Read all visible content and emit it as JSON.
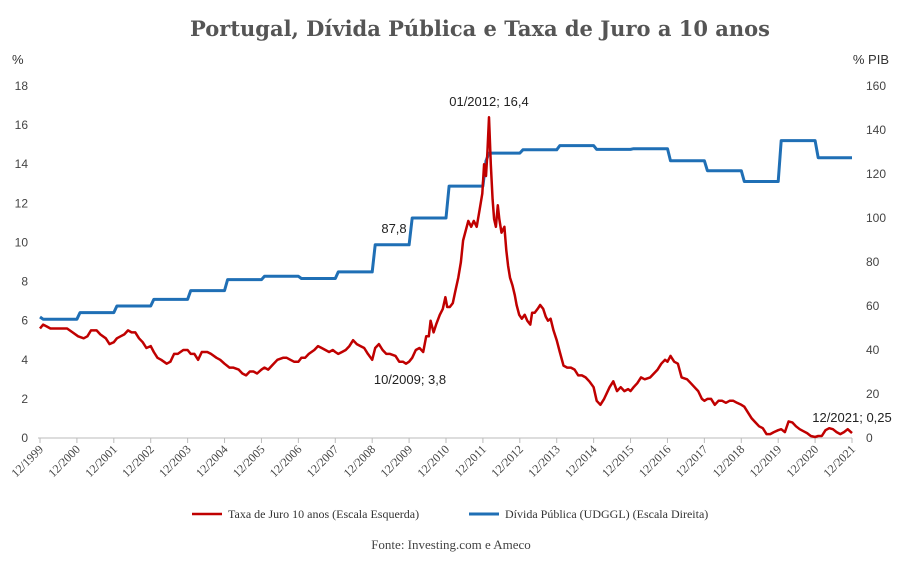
{
  "chart_data": {
    "type": "line",
    "title": "Portugal, Dívida Pública e Taxa de Juro a 10 anos",
    "left_axis_unit": "%",
    "right_axis_unit": "% PIB",
    "ylim_left": [
      0,
      18
    ],
    "ylim_right": [
      0,
      160
    ],
    "yticks_left": [
      "0",
      "2",
      "4",
      "6",
      "8",
      "10",
      "12",
      "14",
      "16",
      "18"
    ],
    "yticks_right": [
      "0",
      "20",
      "40",
      "60",
      "80",
      "100",
      "120",
      "140",
      "160"
    ],
    "xlim": [
      1999.917,
      2021.917
    ],
    "xticks": [
      "12/1999",
      "12/2000",
      "12/2001",
      "12/2002",
      "12/2003",
      "12/2004",
      "12/2005",
      "12/2006",
      "12/2007",
      "12/2008",
      "12/2009",
      "12/2010",
      "12/2011",
      "12/2012",
      "12/2013",
      "12/2014",
      "12/2015",
      "12/2016",
      "12/2017",
      "12/2018",
      "12/2019",
      "12/2020",
      "12/2021"
    ],
    "grid": false,
    "legend_position": "bottom",
    "source": "Fonte: Investing.com e Ameco",
    "series": [
      {
        "name": "Taxa de Juro 10 anos (Escala Esquerda)",
        "axis": "left",
        "color": "#C00000",
        "points": [
          [
            1999.917,
            5.6
          ],
          [
            2000.0,
            5.8
          ],
          [
            2000.1,
            5.7
          ],
          [
            2000.2,
            5.6
          ],
          [
            2000.35,
            5.6
          ],
          [
            2000.5,
            5.6
          ],
          [
            2000.65,
            5.6
          ],
          [
            2000.8,
            5.4
          ],
          [
            2000.95,
            5.2
          ],
          [
            2001.1,
            5.1
          ],
          [
            2001.2,
            5.2
          ],
          [
            2001.3,
            5.5
          ],
          [
            2001.45,
            5.5
          ],
          [
            2001.55,
            5.3
          ],
          [
            2001.7,
            5.1
          ],
          [
            2001.8,
            4.8
          ],
          [
            2001.917,
            4.9
          ],
          [
            2002.0,
            5.1
          ],
          [
            2002.1,
            5.2
          ],
          [
            2002.2,
            5.3
          ],
          [
            2002.3,
            5.5
          ],
          [
            2002.4,
            5.4
          ],
          [
            2002.5,
            5.4
          ],
          [
            2002.6,
            5.1
          ],
          [
            2002.7,
            4.9
          ],
          [
            2002.8,
            4.6
          ],
          [
            2002.917,
            4.7
          ],
          [
            2003.0,
            4.4
          ],
          [
            2003.1,
            4.1
          ],
          [
            2003.2,
            4.0
          ],
          [
            2003.35,
            3.8
          ],
          [
            2003.45,
            3.9
          ],
          [
            2003.55,
            4.3
          ],
          [
            2003.65,
            4.3
          ],
          [
            2003.8,
            4.5
          ],
          [
            2003.917,
            4.5
          ],
          [
            2004.0,
            4.3
          ],
          [
            2004.1,
            4.3
          ],
          [
            2004.2,
            4.0
          ],
          [
            2004.3,
            4.4
          ],
          [
            2004.45,
            4.4
          ],
          [
            2004.55,
            4.3
          ],
          [
            2004.7,
            4.1
          ],
          [
            2004.8,
            4.0
          ],
          [
            2004.917,
            3.8
          ],
          [
            2005.05,
            3.6
          ],
          [
            2005.15,
            3.6
          ],
          [
            2005.3,
            3.5
          ],
          [
            2005.4,
            3.3
          ],
          [
            2005.5,
            3.2
          ],
          [
            2005.6,
            3.4
          ],
          [
            2005.7,
            3.4
          ],
          [
            2005.8,
            3.3
          ],
          [
            2005.917,
            3.5
          ],
          [
            2006.0,
            3.6
          ],
          [
            2006.1,
            3.5
          ],
          [
            2006.2,
            3.7
          ],
          [
            2006.35,
            4.0
          ],
          [
            2006.5,
            4.1
          ],
          [
            2006.6,
            4.1
          ],
          [
            2006.7,
            4.0
          ],
          [
            2006.8,
            3.9
          ],
          [
            2006.917,
            3.9
          ],
          [
            2007.0,
            4.1
          ],
          [
            2007.1,
            4.1
          ],
          [
            2007.2,
            4.3
          ],
          [
            2007.35,
            4.5
          ],
          [
            2007.45,
            4.7
          ],
          [
            2007.55,
            4.6
          ],
          [
            2007.65,
            4.5
          ],
          [
            2007.75,
            4.4
          ],
          [
            2007.85,
            4.5
          ],
          [
            2007.917,
            4.4
          ],
          [
            2008.0,
            4.3
          ],
          [
            2008.1,
            4.4
          ],
          [
            2008.2,
            4.5
          ],
          [
            2008.3,
            4.7
          ],
          [
            2008.4,
            5.0
          ],
          [
            2008.5,
            4.8
          ],
          [
            2008.6,
            4.7
          ],
          [
            2008.7,
            4.6
          ],
          [
            2008.8,
            4.3
          ],
          [
            2008.917,
            4.0
          ],
          [
            2009.0,
            4.6
          ],
          [
            2009.1,
            4.8
          ],
          [
            2009.2,
            4.5
          ],
          [
            2009.3,
            4.3
          ],
          [
            2009.4,
            4.3
          ],
          [
            2009.55,
            4.2
          ],
          [
            2009.65,
            3.9
          ],
          [
            2009.75,
            3.9
          ],
          [
            2009.833,
            3.8
          ],
          [
            2009.917,
            3.9
          ],
          [
            2010.0,
            4.1
          ],
          [
            2010.1,
            4.5
          ],
          [
            2010.2,
            4.6
          ],
          [
            2010.3,
            4.4
          ],
          [
            2010.38,
            5.2
          ],
          [
            2010.45,
            5.2
          ],
          [
            2010.5,
            6.0
          ],
          [
            2010.58,
            5.4
          ],
          [
            2010.65,
            5.8
          ],
          [
            2010.75,
            6.3
          ],
          [
            2010.83,
            6.6
          ],
          [
            2010.9,
            7.2
          ],
          [
            2010.95,
            6.7
          ],
          [
            2011.02,
            6.7
          ],
          [
            2011.1,
            6.9
          ],
          [
            2011.17,
            7.5
          ],
          [
            2011.25,
            8.2
          ],
          [
            2011.32,
            9.0
          ],
          [
            2011.38,
            10.1
          ],
          [
            2011.45,
            10.6
          ],
          [
            2011.52,
            11.1
          ],
          [
            2011.6,
            10.8
          ],
          [
            2011.67,
            11.1
          ],
          [
            2011.75,
            10.8
          ],
          [
            2011.83,
            11.7
          ],
          [
            2011.9,
            12.5
          ],
          [
            2011.95,
            14.0
          ],
          [
            2012.0,
            13.4
          ],
          [
            2012.04,
            14.6
          ],
          [
            2012.083,
            16.4
          ],
          [
            2012.13,
            14.0
          ],
          [
            2012.18,
            12.2
          ],
          [
            2012.22,
            11.2
          ],
          [
            2012.27,
            10.8
          ],
          [
            2012.32,
            11.9
          ],
          [
            2012.36,
            11.2
          ],
          [
            2012.42,
            10.5
          ],
          [
            2012.5,
            10.8
          ],
          [
            2012.55,
            9.6
          ],
          [
            2012.6,
            8.8
          ],
          [
            2012.65,
            8.2
          ],
          [
            2012.72,
            7.8
          ],
          [
            2012.78,
            7.3
          ],
          [
            2012.83,
            6.8
          ],
          [
            2012.9,
            6.3
          ],
          [
            2012.97,
            6.1
          ],
          [
            2013.05,
            6.3
          ],
          [
            2013.12,
            6.0
          ],
          [
            2013.2,
            5.8
          ],
          [
            2013.25,
            6.4
          ],
          [
            2013.32,
            6.4
          ],
          [
            2013.4,
            6.6
          ],
          [
            2013.47,
            6.8
          ],
          [
            2013.55,
            6.6
          ],
          [
            2013.62,
            6.2
          ],
          [
            2013.68,
            6.0
          ],
          [
            2013.75,
            6.1
          ],
          [
            2013.83,
            5.5
          ],
          [
            2013.917,
            5.0
          ],
          [
            2014.0,
            4.4
          ],
          [
            2014.1,
            3.7
          ],
          [
            2014.2,
            3.6
          ],
          [
            2014.3,
            3.6
          ],
          [
            2014.4,
            3.5
          ],
          [
            2014.5,
            3.2
          ],
          [
            2014.6,
            3.2
          ],
          [
            2014.7,
            3.1
          ],
          [
            2014.8,
            2.9
          ],
          [
            2014.917,
            2.6
          ],
          [
            2015.0,
            1.9
          ],
          [
            2015.1,
            1.7
          ],
          [
            2015.2,
            2.0
          ],
          [
            2015.35,
            2.6
          ],
          [
            2015.45,
            2.9
          ],
          [
            2015.55,
            2.4
          ],
          [
            2015.65,
            2.6
          ],
          [
            2015.75,
            2.4
          ],
          [
            2015.85,
            2.5
          ],
          [
            2015.917,
            2.4
          ],
          [
            2016.0,
            2.6
          ],
          [
            2016.1,
            2.8
          ],
          [
            2016.2,
            3.1
          ],
          [
            2016.3,
            3.0
          ],
          [
            2016.45,
            3.1
          ],
          [
            2016.55,
            3.3
          ],
          [
            2016.65,
            3.5
          ],
          [
            2016.75,
            3.8
          ],
          [
            2016.85,
            4.0
          ],
          [
            2016.917,
            3.9
          ],
          [
            2017.0,
            4.2
          ],
          [
            2017.1,
            3.9
          ],
          [
            2017.2,
            3.8
          ],
          [
            2017.3,
            3.1
          ],
          [
            2017.45,
            3.0
          ],
          [
            2017.55,
            2.8
          ],
          [
            2017.65,
            2.6
          ],
          [
            2017.75,
            2.4
          ],
          [
            2017.85,
            2.0
          ],
          [
            2017.917,
            1.9
          ],
          [
            2018.0,
            2.0
          ],
          [
            2018.1,
            2.0
          ],
          [
            2018.2,
            1.7
          ],
          [
            2018.3,
            1.9
          ],
          [
            2018.4,
            1.9
          ],
          [
            2018.5,
            1.8
          ],
          [
            2018.6,
            1.9
          ],
          [
            2018.7,
            1.9
          ],
          [
            2018.8,
            1.8
          ],
          [
            2018.917,
            1.7
          ],
          [
            2019.0,
            1.6
          ],
          [
            2019.1,
            1.3
          ],
          [
            2019.2,
            1.0
          ],
          [
            2019.3,
            0.8
          ],
          [
            2019.4,
            0.6
          ],
          [
            2019.5,
            0.5
          ],
          [
            2019.6,
            0.2
          ],
          [
            2019.7,
            0.2
          ],
          [
            2019.8,
            0.3
          ],
          [
            2019.917,
            0.4
          ],
          [
            2020.0,
            0.45
          ],
          [
            2020.1,
            0.3
          ],
          [
            2020.2,
            0.85
          ],
          [
            2020.3,
            0.8
          ],
          [
            2020.4,
            0.6
          ],
          [
            2020.5,
            0.45
          ],
          [
            2020.6,
            0.35
          ],
          [
            2020.7,
            0.25
          ],
          [
            2020.8,
            0.1
          ],
          [
            2020.917,
            0.05
          ],
          [
            2021.0,
            0.1
          ],
          [
            2021.1,
            0.1
          ],
          [
            2021.2,
            0.4
          ],
          [
            2021.3,
            0.5
          ],
          [
            2021.4,
            0.45
          ],
          [
            2021.5,
            0.3
          ],
          [
            2021.6,
            0.2
          ],
          [
            2021.7,
            0.3
          ],
          [
            2021.8,
            0.45
          ],
          [
            2021.917,
            0.25
          ]
        ]
      },
      {
        "name": "Dívida Pública (UDGGL) (Escala Direita)",
        "axis": "right",
        "color": "#1F6FB5",
        "points": [
          [
            1999.917,
            55
          ],
          [
            2000.0,
            54
          ],
          [
            2000.917,
            54
          ],
          [
            2001.0,
            57
          ],
          [
            2001.917,
            57
          ],
          [
            2002.0,
            60
          ],
          [
            2002.917,
            60
          ],
          [
            2003.0,
            63
          ],
          [
            2003.917,
            63
          ],
          [
            2004.0,
            67
          ],
          [
            2004.917,
            67
          ],
          [
            2005.0,
            72
          ],
          [
            2005.917,
            72
          ],
          [
            2006.0,
            73.5
          ],
          [
            2006.917,
            73.5
          ],
          [
            2007.0,
            72.5
          ],
          [
            2007.917,
            72.5
          ],
          [
            2008.0,
            75.5
          ],
          [
            2008.917,
            75.5
          ],
          [
            2009.0,
            87.8
          ],
          [
            2009.917,
            87.8
          ],
          [
            2010.0,
            100
          ],
          [
            2010.917,
            100
          ],
          [
            2011.0,
            114.5
          ],
          [
            2011.917,
            114.5
          ],
          [
            2012.0,
            126
          ],
          [
            2012.083,
            129.5
          ],
          [
            2012.917,
            129.5
          ],
          [
            2013.0,
            131
          ],
          [
            2013.917,
            131
          ],
          [
            2014.0,
            132.9
          ],
          [
            2014.917,
            132.9
          ],
          [
            2015.0,
            131.2
          ],
          [
            2015.917,
            131.2
          ],
          [
            2016.0,
            131.5
          ],
          [
            2016.917,
            131.5
          ],
          [
            2017.0,
            126
          ],
          [
            2017.917,
            126
          ],
          [
            2018.0,
            121.5
          ],
          [
            2018.917,
            121.5
          ],
          [
            2019.0,
            116.6
          ],
          [
            2019.917,
            116.6
          ],
          [
            2020.0,
            135.2
          ],
          [
            2020.917,
            135.2
          ],
          [
            2021.0,
            127.4
          ],
          [
            2021.917,
            127.4
          ]
        ]
      }
    ],
    "annotations": [
      {
        "text": "01/2012; 16,4"
      },
      {
        "text": "87,8"
      },
      {
        "text": "10/2009; 3,8"
      },
      {
        "text": "12/2021; 0,25"
      }
    ]
  }
}
